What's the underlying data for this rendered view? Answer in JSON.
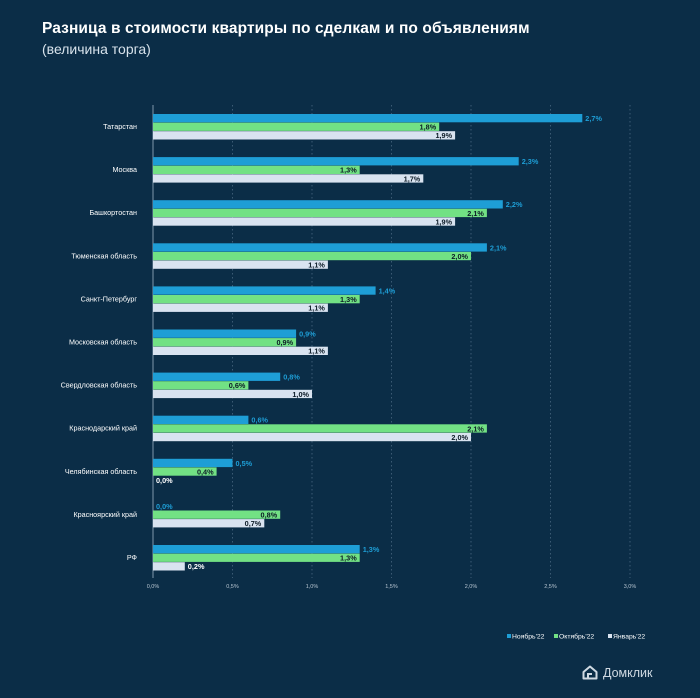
{
  "header": {
    "title": "Разница в стоимости квартиры по сделкам и по объявлениям",
    "subtitle": "(величина торга)"
  },
  "brand": {
    "logo_text": "Домклик",
    "logo_icon": "house-icon"
  },
  "colors": {
    "background": "#0b2d47",
    "series": [
      "#1e9ed6",
      "#72e184",
      "#d9e3f0"
    ],
    "grid": "#5d7b93",
    "tick_label": "#b8c6d2",
    "category_label": "#ffffff"
  },
  "chart_data": {
    "type": "bar",
    "orientation": "horizontal",
    "categories": [
      "Татарстан",
      "Москва",
      "Башкортостан",
      "Тюменская область",
      "Санкт-Петербург",
      "Московская область",
      "Свердловская область",
      "Краснодарский край",
      "Челябинская область",
      "Красноярский край",
      "РФ"
    ],
    "series": [
      {
        "name": "Ноябрь'22",
        "values": [
          2.7,
          2.3,
          2.2,
          2.1,
          1.4,
          0.9,
          0.8,
          0.6,
          0.5,
          0.0,
          1.3
        ],
        "labels": [
          "2,7%",
          "2,3%",
          "2,2%",
          "2,1%",
          "1,4%",
          "0,9%",
          "0,8%",
          "0,6%",
          "0,5%",
          "0,0%",
          "1,3%"
        ]
      },
      {
        "name": "Октябрь'22",
        "values": [
          1.8,
          1.3,
          2.1,
          2.0,
          1.3,
          0.9,
          0.6,
          2.1,
          0.4,
          0.8,
          1.3
        ],
        "labels": [
          "1,8%",
          "1,3%",
          "2,1%",
          "2,0%",
          "1,3%",
          "0,9%",
          "0,6%",
          "2,1%",
          "0,4%",
          "0,8%",
          "1,3%"
        ]
      },
      {
        "name": "Январь'22",
        "values": [
          1.9,
          1.7,
          1.9,
          1.1,
          1.1,
          1.1,
          1.0,
          2.0,
          0.0,
          0.7,
          0.2
        ],
        "labels": [
          "1,9%",
          "1,7%",
          "1,9%",
          "1,1%",
          "1,1%",
          "1,1%",
          "1,0%",
          "2,0%",
          "0,0%",
          "0,7%",
          "0,2%"
        ]
      }
    ],
    "xlim": [
      0,
      3.0
    ],
    "xticks": [
      0,
      0.5,
      1.0,
      1.5,
      2.0,
      2.5,
      3.0
    ],
    "xtick_labels": [
      "0,0%",
      "0,5%",
      "1,0%",
      "1,5%",
      "2,0%",
      "2,5%",
      "3,0%"
    ],
    "grid": true,
    "legend_position": "bottom-right"
  }
}
